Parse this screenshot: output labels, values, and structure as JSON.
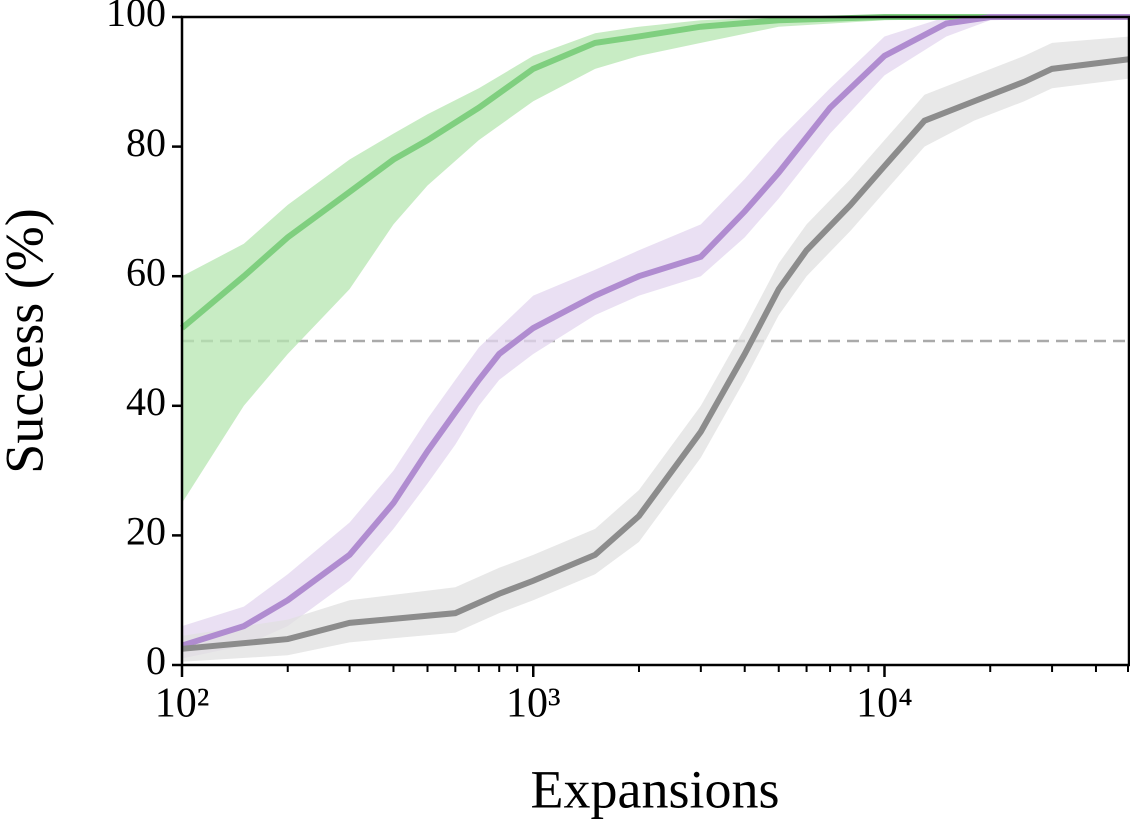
{
  "chart_data": {
    "type": "line",
    "x_label": "Expansions",
    "y_label": "Success (%)",
    "xscale": "log",
    "xlim": [
      100,
      50000
    ],
    "ylim": [
      0,
      100
    ],
    "xticks": [
      {
        "value": 100,
        "label": "10²"
      },
      {
        "value": 1000,
        "label": "10³"
      },
      {
        "value": 10000,
        "label": "10⁴"
      }
    ],
    "xminorticks": [
      200,
      300,
      400,
      500,
      600,
      700,
      800,
      900,
      2000,
      3000,
      4000,
      5000,
      6000,
      7000,
      8000,
      9000,
      20000,
      30000,
      40000,
      50000
    ],
    "yticks": [
      0,
      20,
      40,
      60,
      80,
      100
    ],
    "hline": 50,
    "hline_color": "#aaaaaa",
    "series": [
      {
        "color": "#7fcf7f",
        "band_color": "#b5e6b0",
        "x": [
          100,
          150,
          200,
          300,
          400,
          500,
          700,
          1000,
          1500,
          2000,
          3000,
          5000,
          10000,
          50000
        ],
        "values": [
          52,
          60,
          66,
          73,
          78,
          81,
          86,
          92,
          96,
          97,
          98.5,
          99.5,
          100,
          100
        ],
        "lower": [
          25,
          40,
          48,
          58,
          68,
          74,
          81,
          87,
          92,
          94,
          96,
          98.5,
          99.5,
          100
        ],
        "upper": [
          60,
          65,
          71,
          78,
          82,
          85,
          89,
          94,
          97.5,
          98.5,
          99.5,
          100,
          100,
          100
        ]
      },
      {
        "color": "#b08cd0",
        "band_color": "#e3d6ef",
        "x": [
          100,
          150,
          200,
          300,
          400,
          500,
          600,
          700,
          800,
          1000,
          1500,
          2000,
          3000,
          4000,
          5000,
          7000,
          10000,
          15000,
          20000,
          50000
        ],
        "values": [
          3,
          6,
          10,
          17,
          25,
          33,
          39,
          44,
          48,
          52,
          57,
          60,
          63,
          70,
          76,
          86,
          94,
          99,
          100,
          100
        ],
        "lower": [
          1,
          3,
          6,
          13,
          21,
          28,
          34,
          40,
          44,
          48,
          54,
          57,
          60,
          66,
          72,
          82,
          91,
          97,
          99.5,
          100
        ],
        "upper": [
          6,
          9,
          14,
          22,
          30,
          38,
          44,
          49,
          52,
          57,
          61,
          64,
          68,
          75,
          81,
          89,
          97,
          100,
          100,
          100
        ]
      },
      {
        "color": "#8c8c8c",
        "band_color": "#e0e0e0",
        "x": [
          100,
          200,
          300,
          600,
          800,
          1000,
          1500,
          2000,
          3000,
          4000,
          5000,
          6000,
          8000,
          10000,
          13000,
          18000,
          25000,
          30000,
          50000
        ],
        "values": [
          2.5,
          4,
          6.5,
          8,
          11,
          13,
          17,
          23,
          36,
          48,
          58,
          64,
          71,
          77,
          84,
          87,
          90,
          92,
          93.5
        ],
        "lower": [
          0.5,
          1.5,
          3.5,
          5,
          8,
          10,
          14,
          19,
          32,
          44,
          54,
          60,
          67,
          73,
          80,
          84,
          87,
          89,
          90.5
        ],
        "upper": [
          4.5,
          7,
          10,
          12,
          15,
          17,
          21,
          27,
          40,
          52,
          62,
          68,
          75,
          81,
          88,
          91,
          94,
          96,
          97
        ]
      }
    ]
  }
}
